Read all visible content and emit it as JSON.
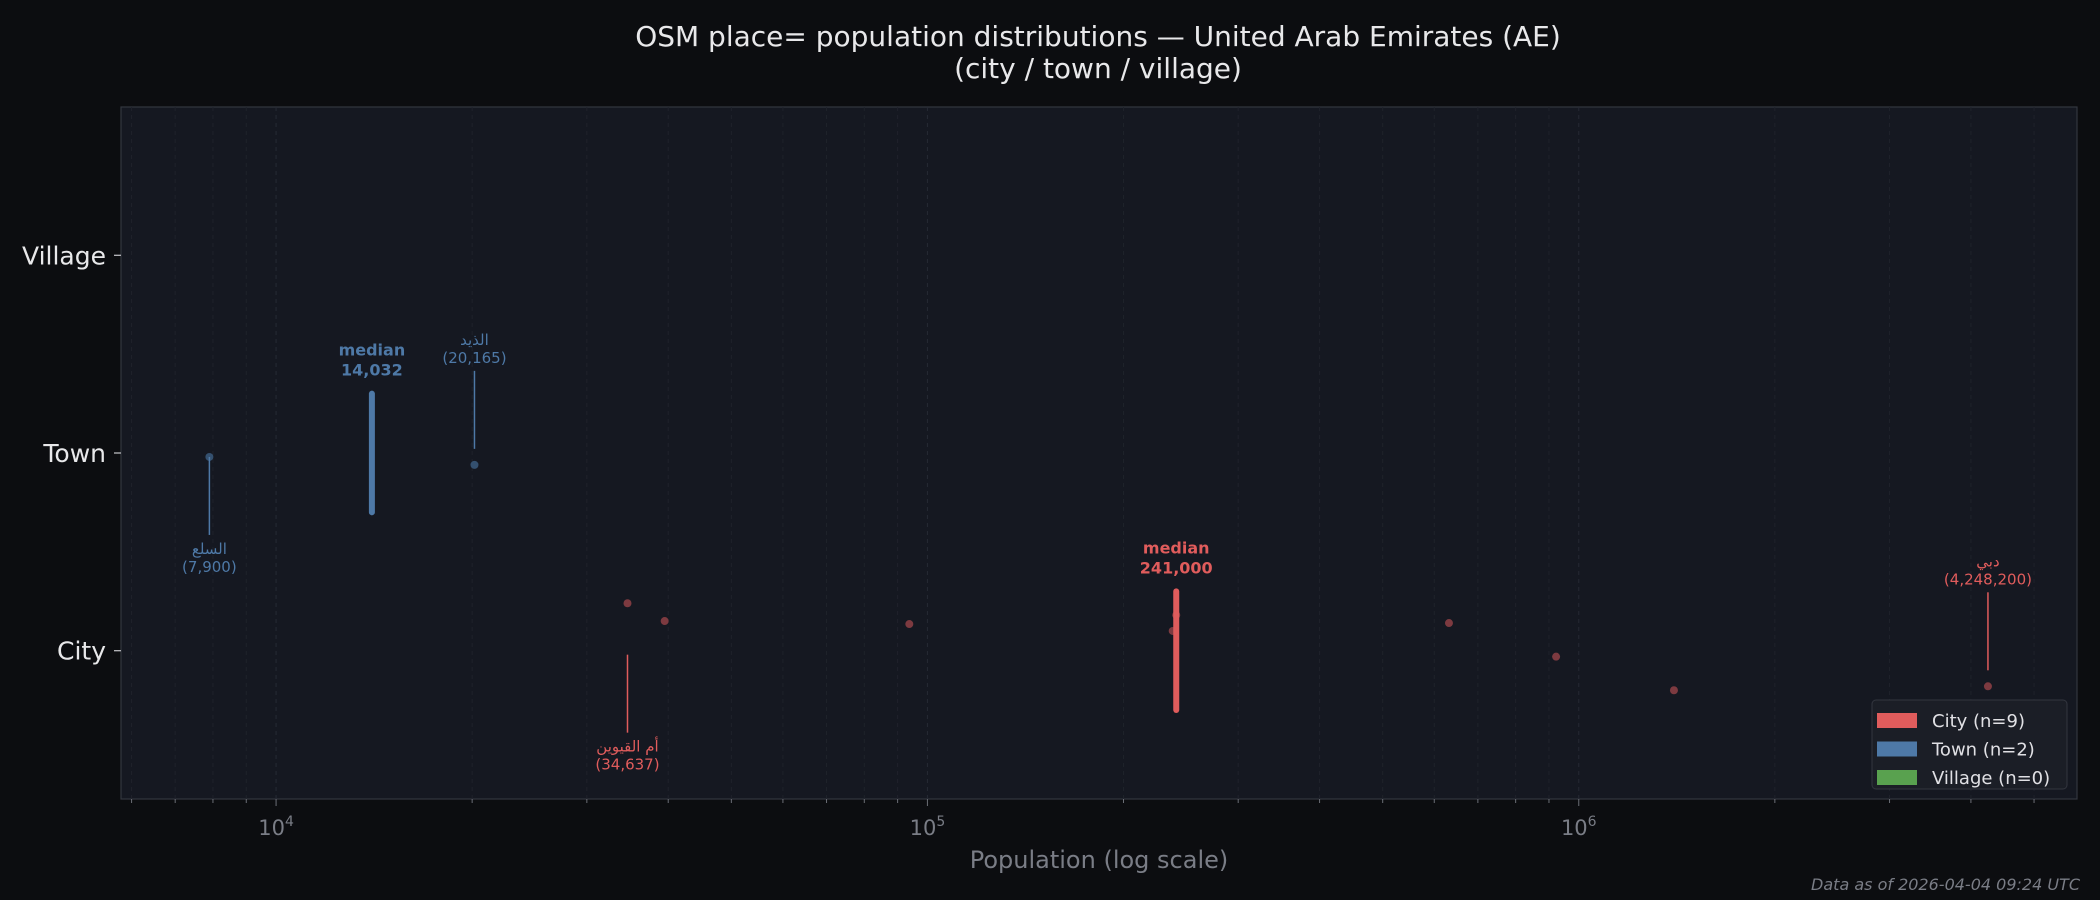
{
  "chart_data": {
    "type": "scatter",
    "title": "OSM place= population distributions — United Arab Emirates (AE)",
    "subtitle": "(city / town / village)",
    "xlabel": "Population (log scale)",
    "ylabel": "",
    "x_scale": "log",
    "xlim": [
      5780,
      5820000
    ],
    "x_ticks": [
      {
        "value": 10000,
        "label": "10^4"
      },
      {
        "value": 100000,
        "label": "10^5"
      },
      {
        "value": 1000000,
        "label": "10^6"
      }
    ],
    "categories": [
      "City",
      "Town",
      "Village"
    ],
    "grid": "vertical, major and minor",
    "legend_placement": "lower-right",
    "series": [
      {
        "name": "City",
        "legend": "City  (n=9)",
        "color": "#e05c5c",
        "point_color": "#7d3a40",
        "values": [
          34637,
          39500,
          93800,
          238000,
          241000,
          632000,
          923000,
          1400000,
          4248200
        ],
        "jitter": [
          0.24,
          0.15,
          0.135,
          0.1,
          0.18,
          0.14,
          -0.03,
          -0.2,
          -0.18
        ],
        "median": 241000,
        "median_label": [
          "median",
          "241,000"
        ],
        "annotations": [
          {
            "value": 34637,
            "name": "أم القيوين",
            "label": "(34,637)",
            "side": "below"
          },
          {
            "value": 4248200,
            "name": "دبي",
            "label": "(4,248,200)",
            "side": "above"
          }
        ]
      },
      {
        "name": "Town",
        "legend": "Town  (n=2)",
        "color": "#4e79a7",
        "point_color": "#34506f",
        "values": [
          7900,
          20165
        ],
        "jitter": [
          -0.02,
          -0.06
        ],
        "median": 14032,
        "median_label": [
          "median",
          "14,032"
        ],
        "annotations": [
          {
            "value": 7900,
            "name": "السلع",
            "label": "(7,900)",
            "side": "below"
          },
          {
            "value": 20165,
            "name": "الذيد",
            "label": "(20,165)",
            "side": "above"
          }
        ]
      },
      {
        "name": "Village",
        "legend": "Village  (n=0)",
        "color": "#59a14f",
        "values": [],
        "jitter": []
      }
    ]
  },
  "footer": "Data as of 2026-04-04 09:24 UTC"
}
